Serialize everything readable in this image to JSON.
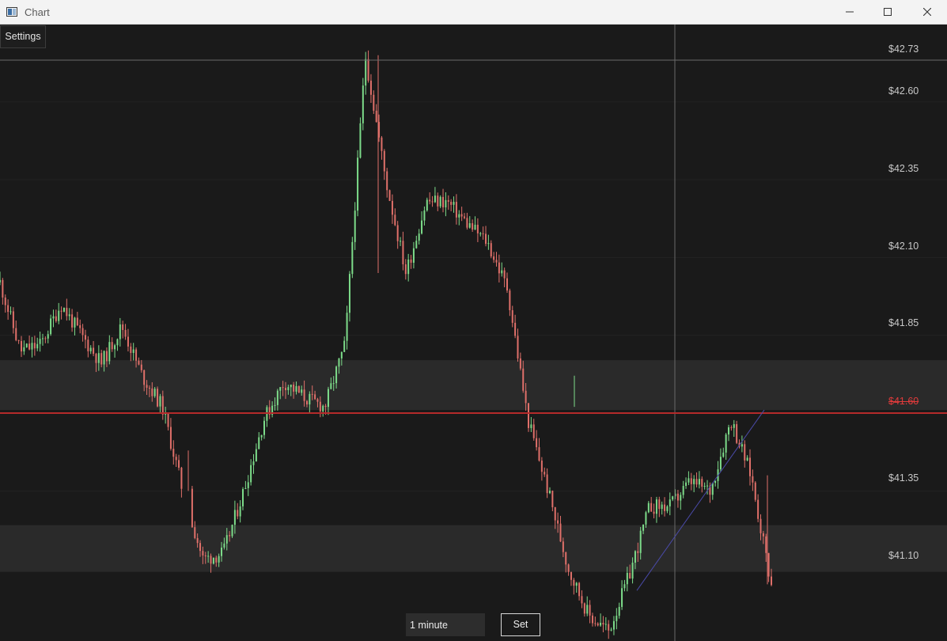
{
  "window": {
    "title": "Chart",
    "icon": "chart-app-icon",
    "controls": [
      "minimize-icon",
      "maximize-icon",
      "close-icon"
    ]
  },
  "toolbar": {
    "settings_label": "Settings"
  },
  "interval": {
    "value": "1 minute",
    "set_label": "Set"
  },
  "price_axis": {
    "labels": [
      "$42.73",
      "$42.60",
      "$42.35",
      "$42.10",
      "$41.85",
      "$41.60",
      "$41.35",
      "$41.10"
    ],
    "current_price": "$41.60"
  },
  "colors": {
    "background": "#1a1a1a",
    "up_candle": "#7ddc8a",
    "down_candle": "#e0706a",
    "current_price_line": "#b52a2a",
    "trendline": "#4a4aa8",
    "zone": "#2a2a2a",
    "crosshair": "#6a6a6a"
  },
  "chart_data": {
    "type": "candlestick",
    "y_axis": {
      "unit": "USD",
      "ticks": [
        42.73,
        42.6,
        42.35,
        42.1,
        41.85,
        41.6,
        41.35,
        41.1
      ]
    },
    "current_price": 41.6,
    "crosshair_price": 42.73,
    "zones": [
      [
        41.61,
        41.77
      ],
      [
        41.09,
        41.24
      ]
    ],
    "trendline": [
      [
        41.03,
        41.61
      ]
    ],
    "close_path": [
      42.02,
      41.8,
      41.82,
      41.95,
      41.85,
      41.76,
      41.88,
      41.72,
      41.62,
      41.35,
      41.13,
      41.15,
      41.35,
      41.58,
      41.7,
      41.65,
      41.62,
      41.82,
      42.75,
      42.35,
      42.05,
      42.28,
      42.28,
      42.21,
      42.15,
      42.0,
      41.58,
      41.35,
      41.1,
      40.95,
      40.9,
      41.08,
      41.3,
      41.3,
      41.38,
      41.35,
      41.58,
      41.4,
      41.05
    ]
  }
}
